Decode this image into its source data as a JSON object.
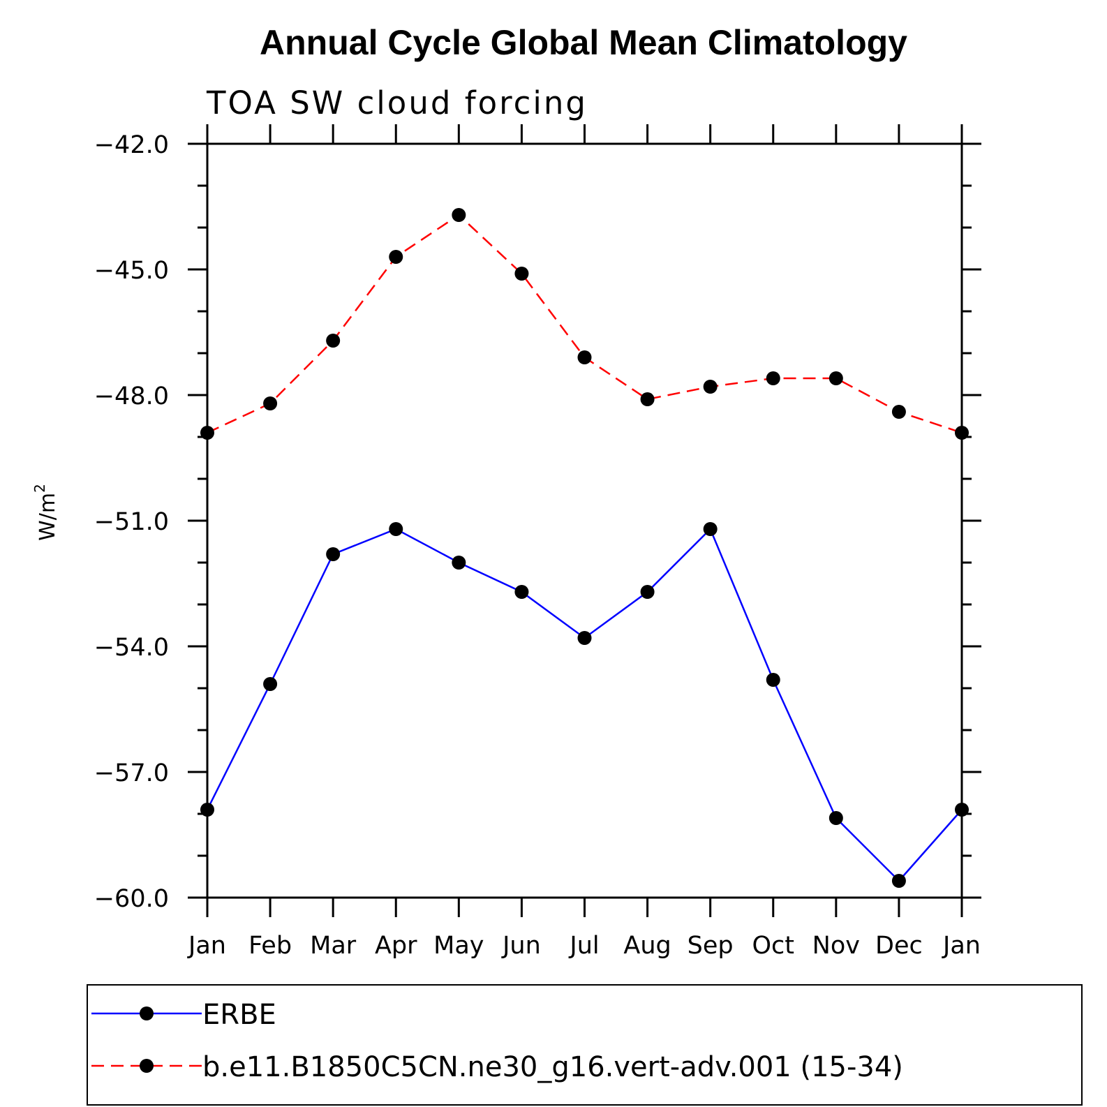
{
  "chart_data": {
    "type": "line",
    "title": "Annual Cycle Global Mean Climatology",
    "subtitle": "TOA SW cloud forcing",
    "ylabel": "W/m",
    "ylabel_superscript": "2",
    "xlabel": "",
    "categories": [
      "Jan",
      "Feb",
      "Mar",
      "Apr",
      "May",
      "Jun",
      "Jul",
      "Aug",
      "Sep",
      "Oct",
      "Nov",
      "Dec",
      "Jan"
    ],
    "ylim": [
      -60.0,
      -42.0
    ],
    "yticks": [
      "-42.0",
      "-45.0",
      "-48.0",
      "-51.0",
      "-54.0",
      "-57.0",
      "-60.0"
    ],
    "grid": false,
    "legend_position": "bottom",
    "series": [
      {
        "name": "ERBE",
        "color": "#0000ff",
        "line_style": "solid",
        "marker": "filled-circle",
        "values": [
          -57.9,
          -54.9,
          -51.8,
          -51.2,
          -52.0,
          -52.7,
          -53.8,
          -52.7,
          -51.2,
          -54.8,
          -58.1,
          -59.6,
          -57.9
        ]
      },
      {
        "name": "b.e11.B1850C5CN.ne30_g16.vert-adv.001 (15-34)",
        "color": "#ff0000",
        "line_style": "dashed",
        "marker": "filled-circle",
        "values": [
          -48.9,
          -48.2,
          -46.7,
          -44.7,
          -43.7,
          -45.1,
          -47.1,
          -48.1,
          -47.8,
          -47.6,
          -47.6,
          -48.4,
          -48.9
        ]
      }
    ]
  }
}
